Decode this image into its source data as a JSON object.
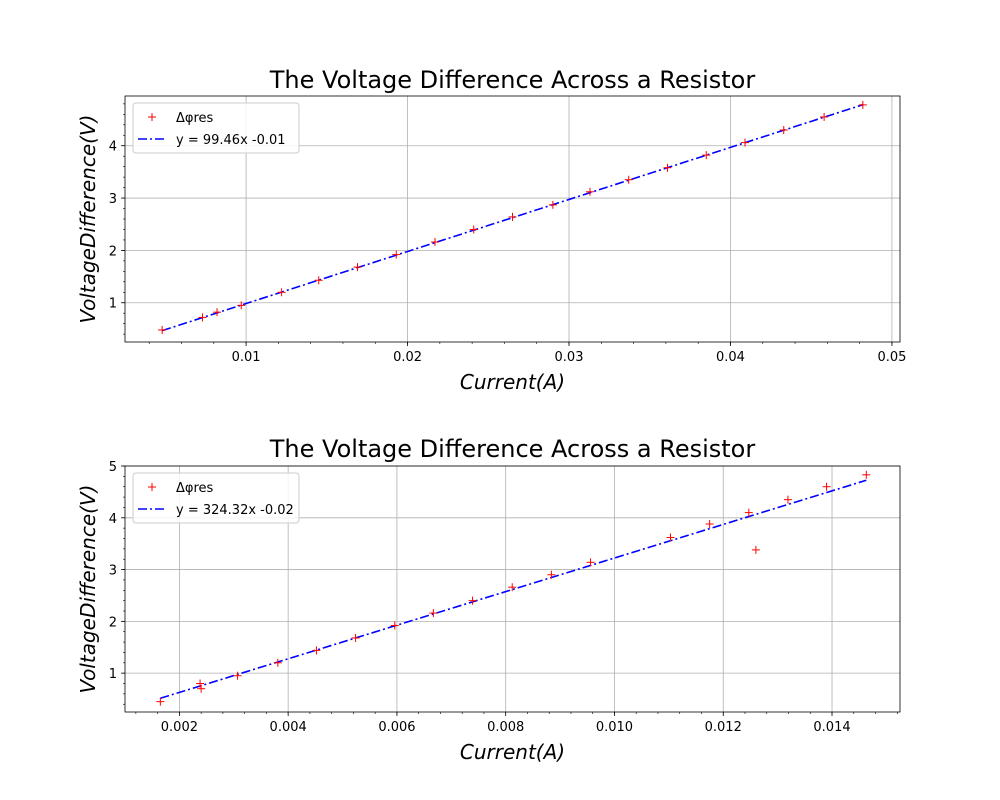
{
  "chart_data": [
    {
      "type": "scatter",
      "title": "The Voltage Difference Across a Resistor",
      "xlabel": "Current(A)",
      "ylabel": "VoltageDifference(V)",
      "xlim": [
        0.0025,
        0.0505
      ],
      "ylim": [
        0.25,
        4.95
      ],
      "xticks": [
        0.01,
        0.02,
        0.03,
        0.04,
        0.05
      ],
      "xtick_labels": [
        "0.01",
        "0.02",
        "0.03",
        "0.04",
        "0.05"
      ],
      "yticks": [
        1,
        2,
        3,
        4
      ],
      "ytick_labels": [
        "1",
        "2",
        "3",
        "4"
      ],
      "grid": true,
      "legend_position": "top-left",
      "series": [
        {
          "name": "Δφres",
          "kind": "points",
          "marker": "plus",
          "color": "#ff0000",
          "x": [
            0.0048,
            0.0073,
            0.0082,
            0.0097,
            0.0122,
            0.0145,
            0.0169,
            0.0193,
            0.0217,
            0.0241,
            0.0265,
            0.029,
            0.0313,
            0.0337,
            0.0361,
            0.0385,
            0.0409,
            0.0433,
            0.0458,
            0.0482
          ],
          "y": [
            0.48,
            0.72,
            0.82,
            0.95,
            1.2,
            1.43,
            1.68,
            1.92,
            2.16,
            2.4,
            2.64,
            2.87,
            3.12,
            3.35,
            3.58,
            3.82,
            4.06,
            4.3,
            4.55,
            4.78
          ]
        },
        {
          "name": "y = 99.46x -0.01",
          "kind": "line",
          "style": "dashdot",
          "color": "#0000ff",
          "slope": 99.46,
          "intercept": -0.01,
          "x_range": [
            0.0048,
            0.0482
          ]
        }
      ]
    },
    {
      "type": "scatter",
      "title": "The Voltage Difference Across a Resistor",
      "xlabel": "Current(A)",
      "ylabel": "VoltageDifference(V)",
      "xlim": [
        0.001,
        0.01525
      ],
      "ylim": [
        0.25,
        5.0
      ],
      "xticks": [
        0.002,
        0.004,
        0.006,
        0.008,
        0.01,
        0.012,
        0.014
      ],
      "xtick_labels": [
        "0.002",
        "0.004",
        "0.006",
        "0.008",
        "0.010",
        "0.012",
        "0.014"
      ],
      "yticks": [
        1,
        2,
        3,
        4,
        5
      ],
      "ytick_labels": [
        "1",
        "2",
        "3",
        "4",
        "5"
      ],
      "grid": true,
      "legend_position": "top-left",
      "series": [
        {
          "name": "Δφres",
          "kind": "points",
          "marker": "plus",
          "color": "#ff0000",
          "x": [
            0.00165,
            0.00238,
            0.0024,
            0.00307,
            0.00381,
            0.00452,
            0.00524,
            0.00596,
            0.00667,
            0.00739,
            0.00812,
            0.00884,
            0.00956,
            0.01103,
            0.01175,
            0.01247,
            0.0126,
            0.01319,
            0.0139,
            0.01463
          ],
          "y": [
            0.45,
            0.8,
            0.7,
            0.95,
            1.2,
            1.44,
            1.68,
            1.92,
            2.16,
            2.4,
            2.66,
            2.9,
            3.14,
            3.62,
            3.88,
            4.1,
            3.38,
            4.35,
            4.6,
            4.83
          ]
        },
        {
          "name": "y = 324.32x -0.02",
          "kind": "line",
          "style": "dashdot",
          "color": "#0000ff",
          "slope": 324.32,
          "intercept": -0.02,
          "x_range": [
            0.00165,
            0.01463
          ]
        }
      ]
    }
  ]
}
